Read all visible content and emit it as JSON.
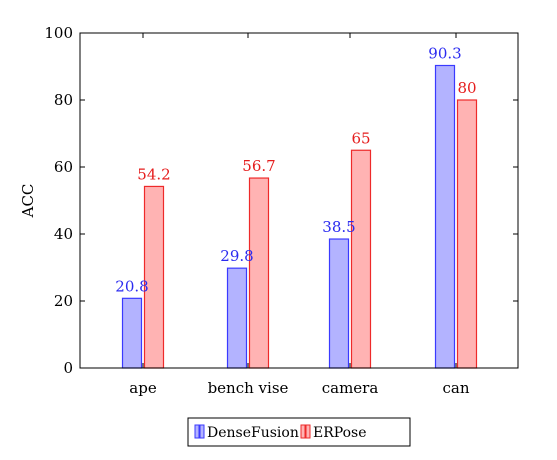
{
  "chart_data": {
    "type": "bar",
    "categories": [
      "ape",
      "bench vise",
      "camera",
      "can"
    ],
    "series": [
      {
        "name": "DenseFusion",
        "values": [
          20.8,
          29.8,
          38.5,
          90.3
        ],
        "labels": [
          "20.8",
          "29.8",
          "38.5",
          "90.3"
        ],
        "fill": "#b3b3ff",
        "stroke": "#3a3aff",
        "label_color": "#2b2bf0"
      },
      {
        "name": "ERPose",
        "values": [
          54.2,
          56.7,
          65,
          80
        ],
        "labels": [
          "54.2",
          "56.7",
          "65",
          "80"
        ],
        "fill": "#ffb3b3",
        "stroke": "#ee2a2a",
        "label_color": "#e51d1d"
      }
    ],
    "title": "",
    "xlabel": "",
    "ylabel": "ACC",
    "ylim": [
      0,
      100
    ],
    "yticks": [
      0,
      20,
      40,
      60,
      80,
      100
    ],
    "ytick_labels": [
      "0",
      "20",
      "40",
      "60",
      "80",
      "100"
    ],
    "grid": false,
    "legend_position": "bottom-center"
  }
}
